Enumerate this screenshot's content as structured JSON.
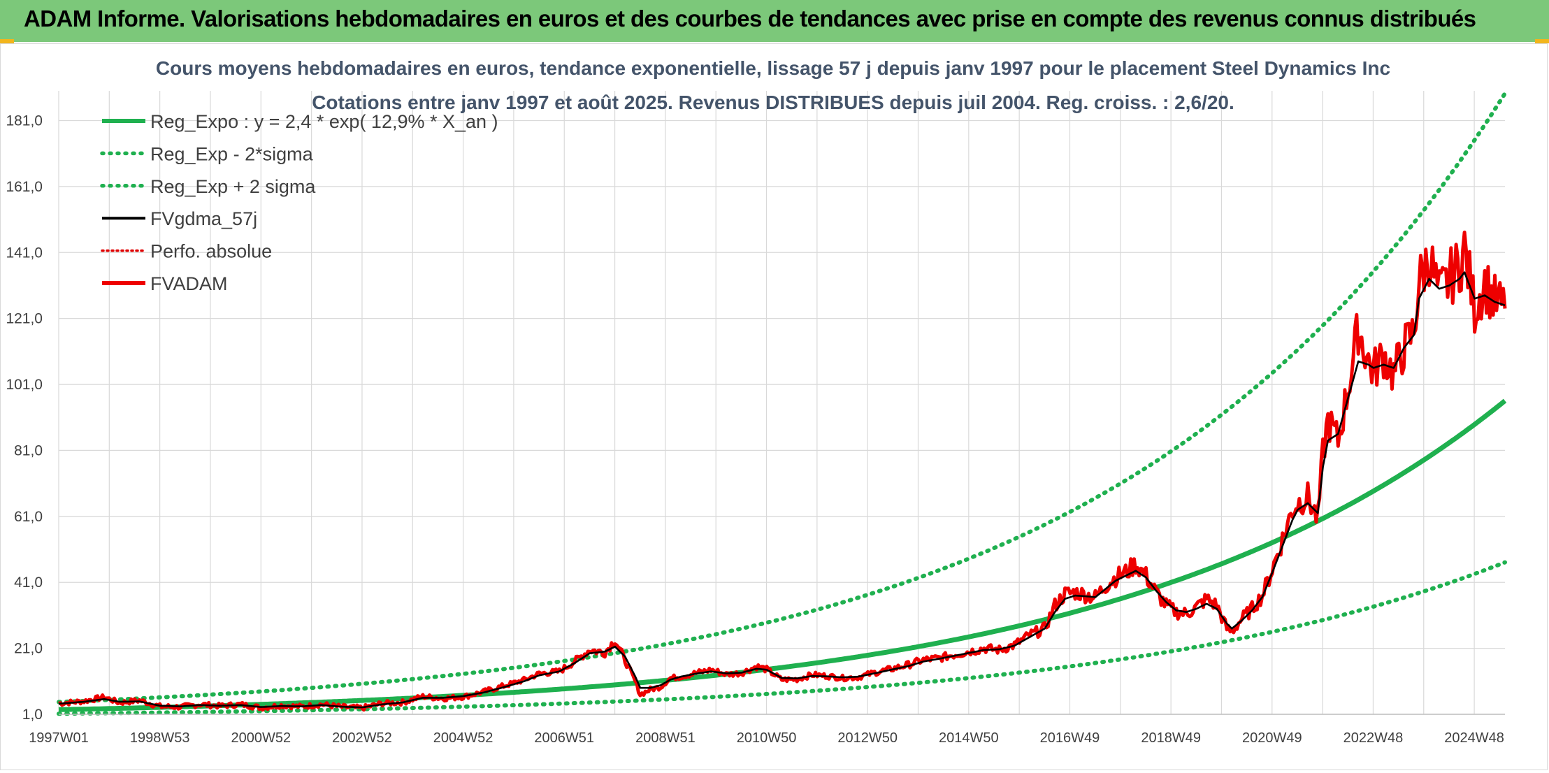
{
  "banner": {
    "title": "ADAM Informe. Valorisations hebdomadaires en euros et des courbes de tendances avec prise en compte des revenus connus distribués"
  },
  "colors": {
    "banner_bg": "#7cc87a",
    "trend": "#1fb04f",
    "band": "#1fb04f",
    "fvgdma": "#000000",
    "perfo": "#e00000",
    "fvadam": "#ee0000",
    "grid": "#d9d9d9"
  },
  "chart_data": {
    "type": "line",
    "title_lines": [
      "Cours moyens hebdomadaires en euros, tendance exponentielle, lissage 57 j depuis janv 1997 pour le placement Steel Dynamics Inc",
      "Cotations entre janv 1997 et août 2025. Revenus DISTRIBUES depuis juil 2004. Reg. croiss. : 2,6/20."
    ],
    "x_tick_labels": [
      "1997W01",
      "1998W53",
      "2000W52",
      "2002W52",
      "2004W52",
      "2006W51",
      "2008W51",
      "2010W50",
      "2012W50",
      "2014W50",
      "2016W49",
      "2018W49",
      "2020W49",
      "2022W48",
      "2024W48"
    ],
    "y_ticks": [
      1.0,
      21.0,
      41.0,
      61.0,
      81.0,
      101.0,
      121.0,
      141.0,
      161.0,
      181.0
    ],
    "y_tick_labels": [
      "1,0",
      "21,0",
      "41,0",
      "61,0",
      "81,0",
      "101,0",
      "121,0",
      "141,0",
      "161,0",
      "181,0"
    ],
    "ylim": [
      1.0,
      190.0
    ],
    "xlim": [
      1997.0,
      2025.6
    ],
    "grid": true,
    "legend_position": "top-left",
    "legend": [
      {
        "label": "Reg_Expo : y = 2,4 * exp( 12,9% *  X_an )",
        "style": "solid",
        "color": "#1fb04f"
      },
      {
        "label": "Reg_Exp - 2*sigma",
        "style": "dotted",
        "color": "#1fb04f"
      },
      {
        "label": "Reg_Exp + 2 sigma",
        "style": "dotted",
        "color": "#1fb04f"
      },
      {
        "label": "FVgdma_57j",
        "style": "solid",
        "color": "#000000"
      },
      {
        "label": "Perfo. absolue",
        "style": "dotted",
        "color": "#e00000"
      },
      {
        "label": "FVADAM",
        "style": "solid",
        "color": "#ee0000"
      }
    ],
    "trend": {
      "a": 2.4,
      "b": 0.129,
      "x0": 1997.0
    },
    "band_factors": {
      "lower": 0.49,
      "upper": 1.97
    },
    "series": [
      {
        "name": "FVADAM",
        "x": [
          1997.0,
          1997.5,
          1997.9,
          1998.2,
          1998.6,
          1999.0,
          1999.4,
          1999.8,
          2000.2,
          2000.6,
          2001.0,
          2001.4,
          2001.8,
          2002.2,
          2002.6,
          2003.0,
          2003.4,
          2003.8,
          2004.2,
          2004.6,
          2005.0,
          2005.4,
          2005.8,
          2006.2,
          2006.5,
          2006.9,
          2007.2,
          2007.5,
          2007.8,
          2008.0,
          2008.2,
          2008.4,
          2008.5,
          2008.7,
          2008.9,
          2009.1,
          2009.3,
          2009.6,
          2009.9,
          2010.2,
          2010.5,
          2010.8,
          2011.0,
          2011.3,
          2011.6,
          2011.9,
          2012.2,
          2012.5,
          2012.8,
          2013.1,
          2013.4,
          2013.8,
          2014.1,
          2014.4,
          2014.7,
          2015.0,
          2015.3,
          2015.6,
          2015.9,
          2016.2,
          2016.5,
          2016.7,
          2016.9,
          2017.1,
          2017.3,
          2017.5,
          2017.7,
          2017.9,
          2018.1,
          2018.3,
          2018.5,
          2018.7,
          2018.9,
          2019.1,
          2019.3,
          2019.5,
          2019.7,
          2019.9,
          2020.1,
          2020.2,
          2020.4,
          2020.6,
          2020.8,
          2021.0,
          2021.2,
          2021.4,
          2021.5,
          2021.7,
          2021.9,
          2022.0,
          2022.1,
          2022.3,
          2022.5,
          2022.7,
          2022.9,
          2023.0,
          2023.2,
          2023.4,
          2023.6,
          2023.8,
          2023.9,
          2024.1,
          2024.3,
          2024.5,
          2024.7,
          2024.8,
          2025.0,
          2025.2,
          2025.4,
          2025.6
        ],
        "values": [
          4.3,
          5.0,
          6.2,
          4.5,
          5.2,
          3.4,
          3.2,
          4.0,
          3.5,
          4.0,
          3.0,
          3.7,
          3.3,
          4.0,
          3.2,
          2.9,
          4.3,
          4.6,
          6.4,
          5.8,
          6.3,
          7.8,
          9.6,
          11.4,
          13.3,
          14.0,
          17.0,
          20.5,
          19.7,
          23.6,
          17.4,
          11.0,
          7.0,
          8.5,
          9.3,
          12.0,
          12.4,
          13.5,
          14.5,
          13.1,
          13.5,
          15.5,
          14.6,
          11.5,
          11.6,
          13.0,
          12.6,
          12.0,
          12.2,
          13.5,
          14.5,
          16.0,
          17.5,
          18.0,
          19.0,
          20.0,
          21.0,
          20.5,
          22.0,
          25.0,
          27.0,
          34.0,
          37.5,
          38.0,
          37.3,
          36.5,
          40.0,
          42.5,
          44.0,
          46.5,
          43.0,
          38.0,
          34.0,
          32.0,
          31.5,
          33.5,
          36.0,
          34.0,
          27.0,
          26.0,
          30.0,
          33.0,
          37.0,
          45.0,
          54.0,
          63.0,
          65.0,
          67.0,
          60.0,
          80.0,
          90.0,
          84.0,
          100.0,
          118.0,
          108.0,
          105.0,
          110.0,
          104.0,
          112.0,
          117.0,
          132.0,
          140.0,
          128.0,
          133.0,
          137.0,
          142.0,
          124.0,
          132.0,
          126.0,
          124.0
        ]
      },
      {
        "name": "FVgdma_57j",
        "x": [
          1997.0,
          1997.5,
          1997.9,
          1998.2,
          1998.6,
          1999.0,
          1999.4,
          1999.8,
          2000.2,
          2000.6,
          2001.0,
          2001.4,
          2001.8,
          2002.2,
          2002.6,
          2003.0,
          2003.4,
          2003.8,
          2004.2,
          2004.6,
          2005.0,
          2005.4,
          2005.8,
          2006.2,
          2006.5,
          2006.9,
          2007.2,
          2007.5,
          2007.8,
          2008.0,
          2008.2,
          2008.4,
          2008.5,
          2008.7,
          2008.9,
          2009.1,
          2009.3,
          2009.6,
          2009.9,
          2010.2,
          2010.5,
          2010.8,
          2011.0,
          2011.3,
          2011.6,
          2011.9,
          2012.2,
          2012.5,
          2012.8,
          2013.1,
          2013.4,
          2013.8,
          2014.1,
          2014.4,
          2014.7,
          2015.0,
          2015.3,
          2015.6,
          2015.9,
          2016.2,
          2016.5,
          2016.7,
          2016.9,
          2017.1,
          2017.3,
          2017.5,
          2017.7,
          2017.9,
          2018.1,
          2018.3,
          2018.5,
          2018.7,
          2018.9,
          2019.1,
          2019.3,
          2019.5,
          2019.7,
          2019.9,
          2020.1,
          2020.2,
          2020.4,
          2020.6,
          2020.8,
          2021.0,
          2021.2,
          2021.4,
          2021.5,
          2021.7,
          2021.9,
          2022.0,
          2022.1,
          2022.3,
          2022.5,
          2022.7,
          2022.9,
          2023.0,
          2023.2,
          2023.4,
          2023.6,
          2023.8,
          2023.9,
          2024.1,
          2024.3,
          2024.5,
          2024.7,
          2024.8,
          2025.0,
          2025.2,
          2025.4,
          2025.6
        ],
        "values": [
          4.2,
          4.8,
          5.6,
          4.8,
          4.9,
          3.6,
          3.4,
          3.8,
          3.6,
          3.8,
          3.2,
          3.5,
          3.4,
          3.8,
          3.3,
          3.1,
          4.0,
          4.6,
          6.0,
          6.0,
          6.5,
          7.6,
          9.2,
          11.0,
          12.8,
          14.0,
          16.5,
          19.5,
          20.0,
          21.5,
          18.5,
          12.5,
          9.0,
          9.0,
          9.8,
          11.5,
          12.4,
          13.3,
          14.0,
          13.4,
          13.6,
          14.8,
          14.5,
          12.0,
          11.9,
          12.6,
          12.5,
          12.2,
          12.4,
          13.3,
          14.3,
          15.6,
          17.0,
          17.8,
          18.7,
          19.6,
          20.5,
          20.7,
          21.8,
          24.4,
          27.0,
          32.0,
          36.0,
          37.0,
          36.8,
          36.5,
          39.0,
          41.5,
          43.0,
          44.5,
          42.5,
          38.5,
          35.0,
          32.5,
          32.0,
          33.0,
          34.5,
          33.0,
          28.5,
          27.0,
          29.5,
          32.5,
          36.5,
          44.0,
          52.0,
          60.0,
          63.0,
          65.0,
          62.0,
          76.0,
          84.0,
          86.0,
          97.0,
          108.0,
          107.0,
          106.0,
          107.0,
          106.0,
          112.0,
          116.0,
          127.0,
          133.0,
          130.0,
          131.0,
          133.0,
          135.0,
          127.0,
          128.0,
          126.0,
          125.0
        ]
      }
    ]
  }
}
